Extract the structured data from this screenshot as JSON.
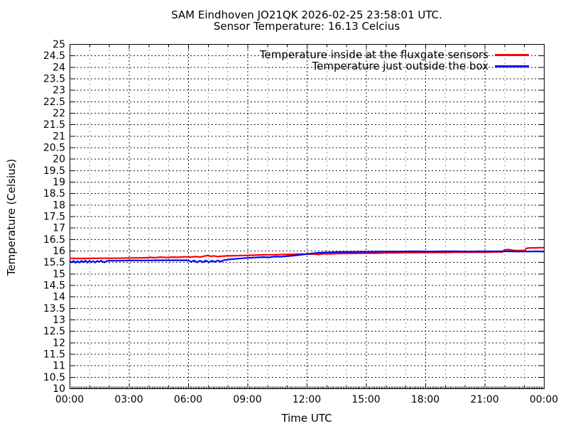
{
  "chart_data": {
    "type": "line",
    "title": "SAM Eindhoven JO21QK 2026-02-25 23:58:01 UTC.",
    "subtitle": "Sensor Temperature: 16.13 Celcius",
    "xlabel": "Time UTC",
    "ylabel": "Temperature (Celsius)",
    "xlim": [
      0,
      24
    ],
    "ylim": [
      10,
      25
    ],
    "x_unit": "hours UTC",
    "x_ticks": [
      {
        "h": 0,
        "label": "00:00"
      },
      {
        "h": 3,
        "label": "03:00"
      },
      {
        "h": 6,
        "label": "06:00"
      },
      {
        "h": 9,
        "label": "09:00"
      },
      {
        "h": 12,
        "label": "12:00"
      },
      {
        "h": 15,
        "label": "15:00"
      },
      {
        "h": 18,
        "label": "18:00"
      },
      {
        "h": 21,
        "label": "21:00"
      },
      {
        "h": 24,
        "label": "00:00"
      }
    ],
    "x_minor_tick_hours": 1,
    "x_subminor_tick_minutes": 5,
    "y_ticks": [
      10,
      10.5,
      11,
      11.5,
      12,
      12.5,
      13,
      13.5,
      14,
      14.5,
      15,
      15.5,
      16,
      16.5,
      17,
      17.5,
      18,
      18.5,
      19,
      19.5,
      20,
      20.5,
      21,
      21.5,
      22,
      22.5,
      23,
      23.5,
      24,
      24.5,
      25
    ],
    "grid": {
      "on": true,
      "h_color": "#1a1a1a",
      "v_major_color": "#1a1a1a",
      "v_minor_color": "#9b9b9b",
      "axis_color": "#000000"
    },
    "legend_position": "top-right-inside",
    "series": [
      {
        "name": "Temperature inside at the fluxgate sensors",
        "color": "#ff0000",
        "points": [
          [
            0,
            15.66
          ],
          [
            0.8,
            15.66
          ],
          [
            1.6,
            15.67
          ],
          [
            2.4,
            15.67
          ],
          [
            3.2,
            15.68
          ],
          [
            3.9,
            15.69
          ],
          [
            4.1,
            15.71
          ],
          [
            4.3,
            15.69
          ],
          [
            4.6,
            15.72
          ],
          [
            4.9,
            15.7
          ],
          [
            5.2,
            15.72
          ],
          [
            5.5,
            15.71
          ],
          [
            5.8,
            15.73
          ],
          [
            6.1,
            15.72
          ],
          [
            6.4,
            15.74
          ],
          [
            6.6,
            15.72
          ],
          [
            6.8,
            15.76
          ],
          [
            7.0,
            15.79
          ],
          [
            7.15,
            15.75
          ],
          [
            7.3,
            15.77
          ],
          [
            7.5,
            15.74
          ],
          [
            7.7,
            15.76
          ],
          [
            8.0,
            15.77
          ],
          [
            8.4,
            15.78
          ],
          [
            8.8,
            15.79
          ],
          [
            9.2,
            15.8
          ],
          [
            9.6,
            15.81
          ],
          [
            10.0,
            15.82
          ],
          [
            10.4,
            15.82
          ],
          [
            10.8,
            15.83
          ],
          [
            11.2,
            15.84
          ],
          [
            11.6,
            15.85
          ],
          [
            12.0,
            15.85
          ],
          [
            12.4,
            15.85
          ],
          [
            12.6,
            15.83
          ],
          [
            12.8,
            15.86
          ],
          [
            13.2,
            15.86
          ],
          [
            13.6,
            15.87
          ],
          [
            14.0,
            15.88
          ],
          [
            14.5,
            15.88
          ],
          [
            15.0,
            15.89
          ],
          [
            15.5,
            15.89
          ],
          [
            16.0,
            15.9
          ],
          [
            16.5,
            15.9
          ],
          [
            17.0,
            15.91
          ],
          [
            17.5,
            15.91
          ],
          [
            18.0,
            15.92
          ],
          [
            18.5,
            15.92
          ],
          [
            19.0,
            15.92
          ],
          [
            19.5,
            15.93
          ],
          [
            20.0,
            15.93
          ],
          [
            20.5,
            15.93
          ],
          [
            21.0,
            15.93
          ],
          [
            21.5,
            15.94
          ],
          [
            21.9,
            15.94
          ],
          [
            22.0,
            16.03
          ],
          [
            22.2,
            16.05
          ],
          [
            22.4,
            16.02
          ],
          [
            22.6,
            16.0
          ],
          [
            22.9,
            16.01
          ],
          [
            23.05,
            16.01
          ],
          [
            23.1,
            16.1
          ],
          [
            23.3,
            16.12
          ],
          [
            23.6,
            16.12
          ],
          [
            23.8,
            16.13
          ],
          [
            24,
            16.13
          ]
        ]
      },
      {
        "name": "Temperature just outside the box",
        "color": "#0000ff",
        "points": [
          [
            0,
            15.56
          ],
          [
            0.1,
            15.49
          ],
          [
            0.2,
            15.55
          ],
          [
            0.3,
            15.47
          ],
          [
            0.4,
            15.54
          ],
          [
            0.5,
            15.48
          ],
          [
            0.6,
            15.55
          ],
          [
            0.7,
            15.5
          ],
          [
            0.8,
            15.56
          ],
          [
            0.9,
            15.48
          ],
          [
            1.0,
            15.55
          ],
          [
            1.1,
            15.5
          ],
          [
            1.2,
            15.54
          ],
          [
            1.3,
            15.48
          ],
          [
            1.4,
            15.55
          ],
          [
            1.5,
            15.51
          ],
          [
            1.6,
            15.56
          ],
          [
            1.75,
            15.49
          ],
          [
            1.9,
            15.55
          ],
          [
            2.1,
            15.56
          ],
          [
            2.5,
            15.56
          ],
          [
            3.0,
            15.57
          ],
          [
            3.5,
            15.57
          ],
          [
            4.0,
            15.57
          ],
          [
            4.5,
            15.58
          ],
          [
            5.0,
            15.58
          ],
          [
            5.5,
            15.58
          ],
          [
            6.0,
            15.58
          ],
          [
            6.15,
            15.51
          ],
          [
            6.3,
            15.57
          ],
          [
            6.45,
            15.49
          ],
          [
            6.6,
            15.56
          ],
          [
            6.75,
            15.5
          ],
          [
            6.9,
            15.57
          ],
          [
            7.05,
            15.49
          ],
          [
            7.2,
            15.56
          ],
          [
            7.35,
            15.51
          ],
          [
            7.5,
            15.57
          ],
          [
            7.65,
            15.52
          ],
          [
            7.8,
            15.58
          ],
          [
            8.1,
            15.62
          ],
          [
            8.5,
            15.65
          ],
          [
            9.0,
            15.68
          ],
          [
            9.4,
            15.7
          ],
          [
            9.8,
            15.72
          ],
          [
            10.1,
            15.71
          ],
          [
            10.4,
            15.74
          ],
          [
            10.7,
            15.73
          ],
          [
            11.0,
            15.76
          ],
          [
            11.3,
            15.78
          ],
          [
            11.6,
            15.81
          ],
          [
            11.9,
            15.84
          ],
          [
            12.2,
            15.87
          ],
          [
            12.5,
            15.9
          ],
          [
            12.9,
            15.92
          ],
          [
            13.3,
            15.93
          ],
          [
            13.7,
            15.94
          ],
          [
            14.2,
            15.94
          ],
          [
            14.7,
            15.95
          ],
          [
            15.2,
            15.95
          ],
          [
            15.7,
            15.96
          ],
          [
            16.2,
            15.96
          ],
          [
            16.7,
            15.96
          ],
          [
            17.2,
            15.97
          ],
          [
            17.7,
            15.97
          ],
          [
            18.2,
            15.96
          ],
          [
            18.7,
            15.97
          ],
          [
            19.2,
            15.97
          ],
          [
            19.7,
            15.97
          ],
          [
            20.2,
            15.96
          ],
          [
            20.7,
            15.97
          ],
          [
            21.2,
            15.97
          ],
          [
            21.7,
            15.97
          ],
          [
            22.2,
            15.97
          ],
          [
            22.7,
            15.96
          ],
          [
            23.2,
            15.96
          ],
          [
            23.6,
            15.97
          ],
          [
            24,
            15.96
          ]
        ]
      }
    ]
  }
}
